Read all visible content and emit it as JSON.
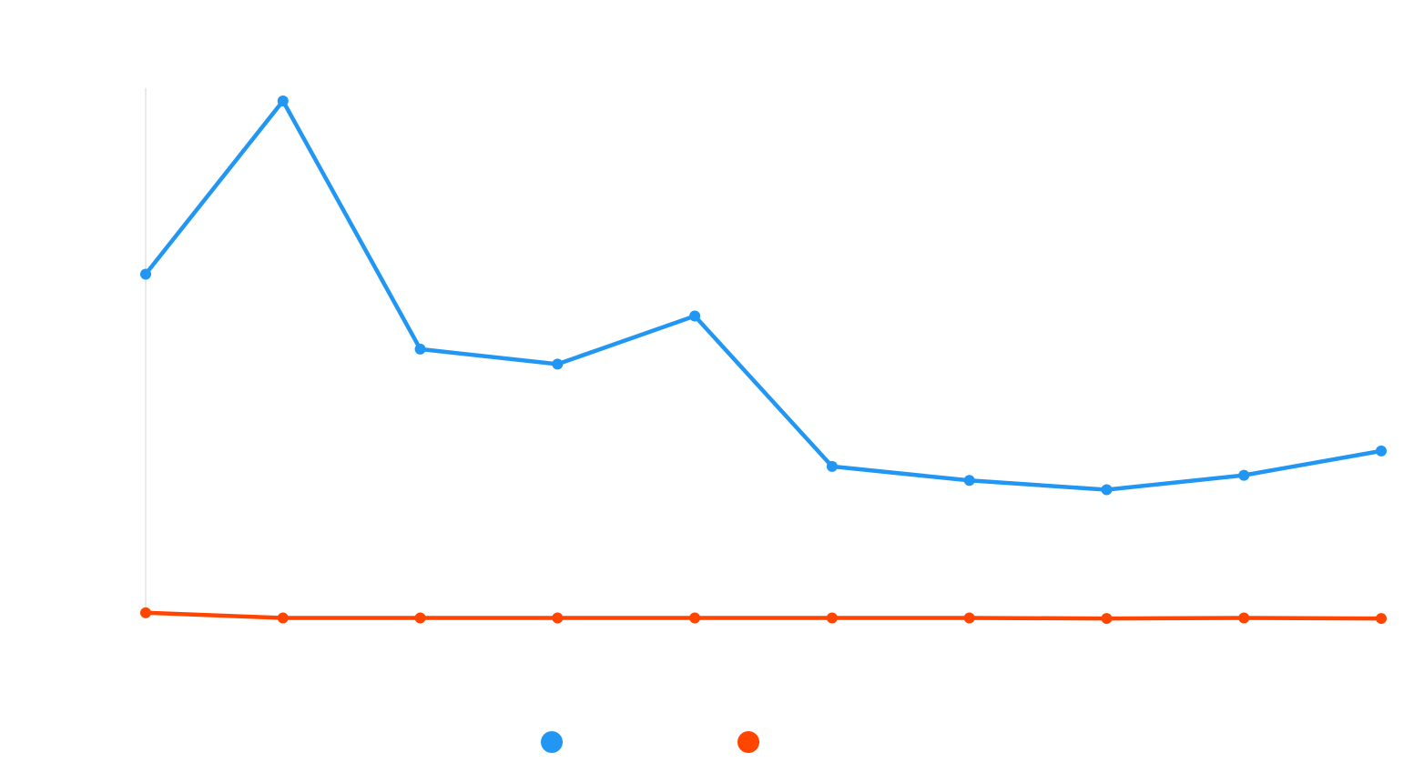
{
  "chart_data": {
    "type": "line",
    "title": "",
    "xlabel": "",
    "ylabel": "",
    "categories": [
      "",
      "",
      "",
      "",
      "",
      "",
      "",
      "",
      "",
      ""
    ],
    "ylim": [
      0,
      100
    ],
    "grid": false,
    "legend_position": "bottom-center",
    "series": [
      {
        "color": "#2196F3",
        "values": [
          66.5,
          100.0,
          52.0,
          49.1,
          58.4,
          29.3,
          26.6,
          24.8,
          27.6,
          32.3
        ]
      },
      {
        "color": "#FF4500",
        "values": [
          1.0,
          0.0,
          0.0,
          0.0,
          0.0,
          0.0,
          0.0,
          -0.1,
          0.0,
          -0.1
        ]
      }
    ]
  }
}
